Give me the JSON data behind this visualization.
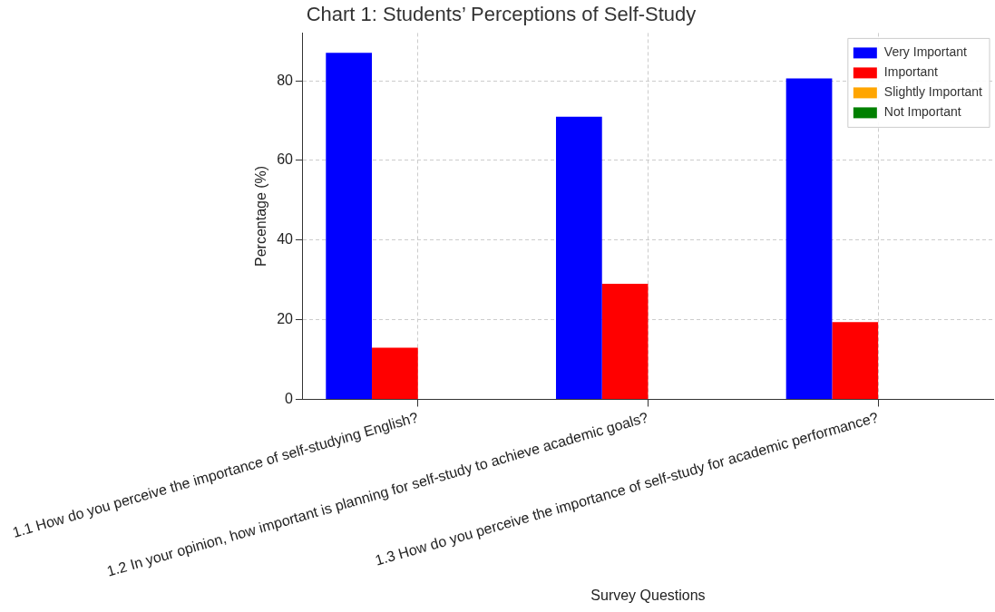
{
  "chart_data": {
    "type": "bar",
    "title": "Chart 1: Students’ Perceptions of Self-Study",
    "xlabel": "Survey Questions",
    "ylabel": "Percentage (%)",
    "categories": [
      "1.1 How do you perceive the importance of self-studying English?",
      "1.2 In your opinion, how important is planning for self-study to achieve academic goals?",
      "1.3 How do you perceive the importance of self-study for academic performance?"
    ],
    "series": [
      {
        "name": "Very Important",
        "color": "#0000ff",
        "values": [
          87,
          71,
          80.6
        ]
      },
      {
        "name": "Important",
        "color": "#ff0000",
        "values": [
          13,
          29,
          19.4
        ]
      },
      {
        "name": "Slightly Important",
        "color": "#ffa500",
        "values": [
          0,
          0,
          0
        ]
      },
      {
        "name": "Not Important",
        "color": "#008000",
        "values": [
          0,
          0,
          0
        ]
      }
    ],
    "ylim": [
      0,
      92
    ],
    "yticks": [
      0,
      20,
      40,
      60,
      80
    ],
    "grid": true,
    "legend": "top right"
  }
}
